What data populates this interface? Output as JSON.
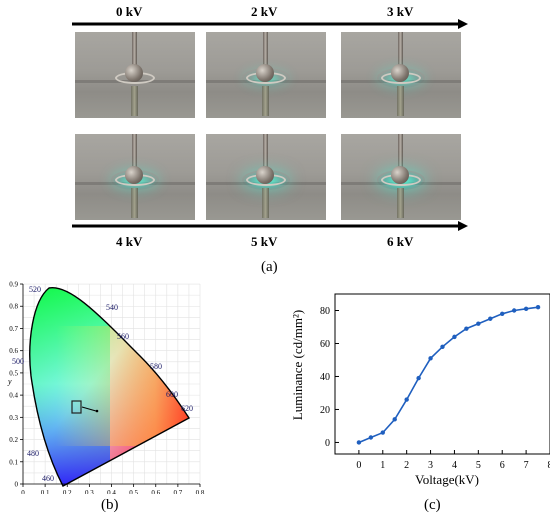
{
  "panel_a": {
    "voltages_top": [
      "0 kV",
      "2 kV",
      "3 kV"
    ],
    "voltages_bottom": [
      "4 kV",
      "5 kV",
      "6 kV"
    ],
    "glow_levels": [
      0,
      0.35,
      0.55,
      0.7,
      0.85,
      1.0
    ],
    "caption": "(a)"
  },
  "panel_b": {
    "caption": "(b)",
    "y_axis_label": "y",
    "x_ticks": [
      "0",
      "0.1",
      "0.2",
      "0.3",
      "0.4",
      "0.5",
      "0.6",
      "0.7",
      "0.8"
    ],
    "y_ticks": [
      "0",
      "0.1",
      "0.2",
      "0.3",
      "0.4",
      "0.5",
      "0.6",
      "0.7",
      "0.8",
      "0.9"
    ],
    "wavelength_labels": [
      "520",
      "540",
      "560",
      "580",
      "600",
      "620",
      "500",
      "480",
      "460"
    ]
  },
  "panel_c": {
    "caption": "(c)"
  },
  "chart_data": [
    {
      "type": "line",
      "title": "",
      "xlabel": "Voltage(kV)",
      "ylabel": "Luminance (cd/mm²)",
      "xlim": [
        -1,
        8
      ],
      "ylim": [
        -7,
        90
      ],
      "x_ticks": [
        0,
        1,
        2,
        3,
        4,
        5,
        6,
        7,
        8
      ],
      "y_ticks": [
        0,
        20,
        40,
        60,
        80
      ],
      "grid": false,
      "series": [
        {
          "color": "#1f5fbf",
          "x": [
            0,
            0.5,
            1,
            1.5,
            2,
            2.5,
            3,
            3.5,
            4,
            4.5,
            5,
            5.5,
            6,
            6.5,
            7,
            7.5
          ],
          "y": [
            0,
            3,
            6,
            14,
            26,
            39,
            51,
            58,
            64,
            69,
            72,
            75,
            78,
            80,
            81,
            82
          ]
        }
      ]
    }
  ]
}
